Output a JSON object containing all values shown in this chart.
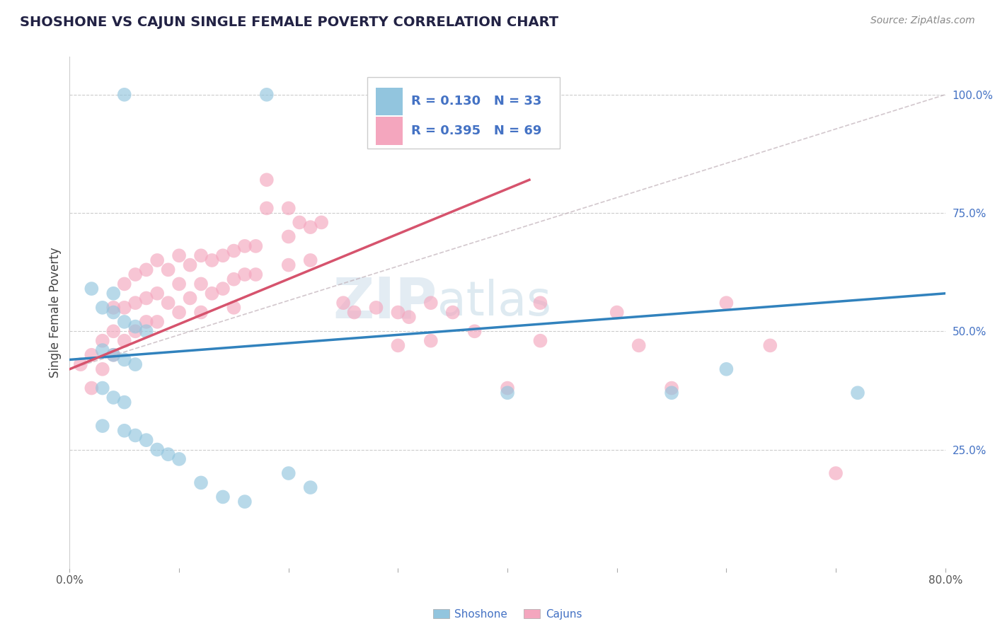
{
  "title": "SHOSHONE VS CAJUN SINGLE FEMALE POVERTY CORRELATION CHART",
  "source_text": "Source: ZipAtlas.com",
  "ylabel": "Single Female Poverty",
  "xlim": [
    0.0,
    0.8
  ],
  "ylim": [
    0.0,
    1.08
  ],
  "ytick_positions": [
    0.25,
    0.5,
    0.75,
    1.0
  ],
  "ytick_labels": [
    "25.0%",
    "50.0%",
    "75.0%",
    "100.0%"
  ],
  "shoshone_color": "#92c5de",
  "cajun_color": "#f4a6be",
  "shoshone_line_color": "#3182bd",
  "cajun_line_color": "#d6536d",
  "legend_text_color": "#4472c4",
  "shoshone_R": 0.13,
  "shoshone_N": 33,
  "cajun_R": 0.395,
  "cajun_N": 69,
  "background_color": "#ffffff",
  "grid_color": "#cccccc",
  "watermark": "ZIPatlas",
  "shoshone_x": [
    0.05,
    0.18,
    0.34,
    0.02,
    0.04,
    0.03,
    0.04,
    0.05,
    0.06,
    0.07,
    0.03,
    0.04,
    0.05,
    0.06,
    0.03,
    0.04,
    0.05,
    0.55,
    0.6,
    0.72,
    0.4,
    0.03,
    0.05,
    0.06,
    0.07,
    0.08,
    0.09,
    0.1,
    0.12,
    0.14,
    0.16,
    0.2,
    0.22
  ],
  "shoshone_y": [
    1.0,
    1.0,
    1.0,
    0.59,
    0.58,
    0.55,
    0.54,
    0.52,
    0.51,
    0.5,
    0.46,
    0.45,
    0.44,
    0.43,
    0.38,
    0.36,
    0.35,
    0.37,
    0.42,
    0.37,
    0.37,
    0.3,
    0.29,
    0.28,
    0.27,
    0.25,
    0.24,
    0.23,
    0.18,
    0.15,
    0.14,
    0.2,
    0.17
  ],
  "cajun_x": [
    0.01,
    0.02,
    0.02,
    0.03,
    0.03,
    0.04,
    0.04,
    0.04,
    0.05,
    0.05,
    0.05,
    0.06,
    0.06,
    0.06,
    0.07,
    0.07,
    0.07,
    0.08,
    0.08,
    0.08,
    0.09,
    0.09,
    0.1,
    0.1,
    0.1,
    0.11,
    0.11,
    0.12,
    0.12,
    0.12,
    0.13,
    0.13,
    0.14,
    0.14,
    0.15,
    0.15,
    0.15,
    0.16,
    0.16,
    0.17,
    0.17,
    0.18,
    0.18,
    0.2,
    0.2,
    0.2,
    0.21,
    0.22,
    0.22,
    0.23,
    0.25,
    0.26,
    0.28,
    0.3,
    0.3,
    0.31,
    0.33,
    0.33,
    0.35,
    0.37,
    0.4,
    0.43,
    0.43,
    0.5,
    0.52,
    0.55,
    0.6,
    0.64,
    0.7
  ],
  "cajun_y": [
    0.43,
    0.45,
    0.38,
    0.48,
    0.42,
    0.55,
    0.5,
    0.45,
    0.6,
    0.55,
    0.48,
    0.62,
    0.56,
    0.5,
    0.63,
    0.57,
    0.52,
    0.65,
    0.58,
    0.52,
    0.63,
    0.56,
    0.66,
    0.6,
    0.54,
    0.64,
    0.57,
    0.66,
    0.6,
    0.54,
    0.65,
    0.58,
    0.66,
    0.59,
    0.67,
    0.61,
    0.55,
    0.68,
    0.62,
    0.68,
    0.62,
    0.82,
    0.76,
    0.76,
    0.7,
    0.64,
    0.73,
    0.72,
    0.65,
    0.73,
    0.56,
    0.54,
    0.55,
    0.54,
    0.47,
    0.53,
    0.56,
    0.48,
    0.54,
    0.5,
    0.38,
    0.56,
    0.48,
    0.54,
    0.47,
    0.38,
    0.56,
    0.47,
    0.2
  ],
  "diag_line": [
    [
      0.0,
      0.42
    ],
    [
      0.8,
      1.0
    ]
  ],
  "shoshone_line": [
    [
      0.0,
      0.44
    ],
    [
      0.8,
      0.58
    ]
  ],
  "cajun_line": [
    [
      0.0,
      0.42
    ],
    [
      0.42,
      0.82
    ]
  ]
}
